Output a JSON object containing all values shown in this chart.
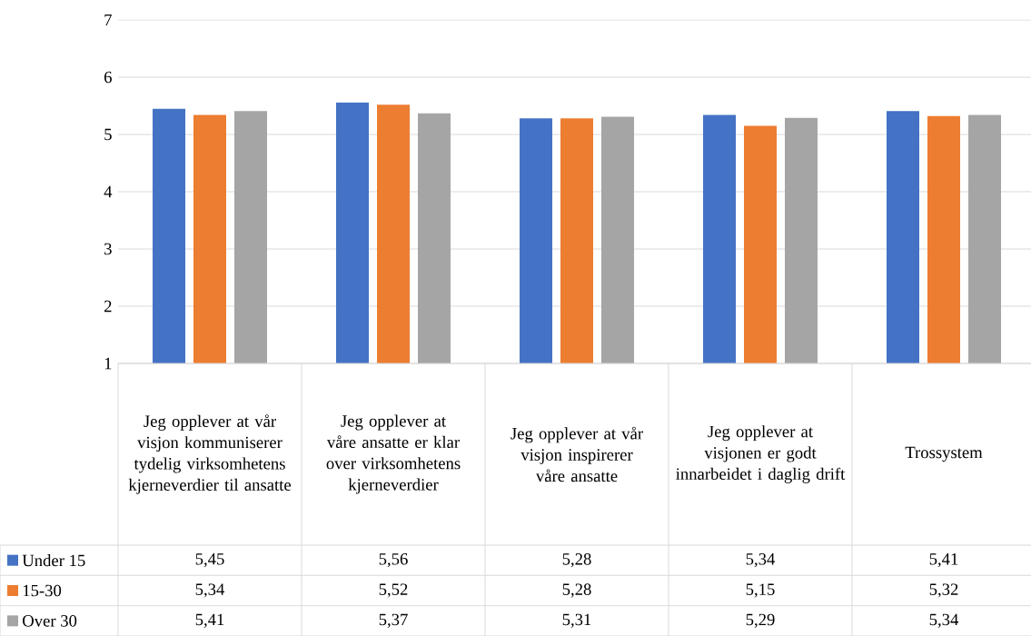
{
  "chart_data": {
    "type": "bar",
    "categories": [
      "Jeg opplever at vår visjon kommuniserer tydelig virksomhetens kjerneverdier til ansatte",
      "Jeg opplever at våre ansatte er klar over virksomhetens kjerneverdier",
      "Jeg opplever at vår visjon inspirerer våre ansatte",
      "Jeg opplever at visjonen er godt innarbeidet i daglig drift",
      "Trossystem"
    ],
    "series": [
      {
        "name": "Under 15",
        "color": "#4472c4",
        "values": [
          5.45,
          5.56,
          5.28,
          5.34,
          5.41
        ],
        "value_labels": [
          "5,45",
          "5,56",
          "5,28",
          "5,34",
          "5,41"
        ]
      },
      {
        "name": "15-30",
        "color": "#ed7d31",
        "values": [
          5.34,
          5.52,
          5.28,
          5.15,
          5.32
        ],
        "value_labels": [
          "5,34",
          "5,52",
          "5,28",
          "5,15",
          "5,32"
        ]
      },
      {
        "name": "Over 30",
        "color": "#a5a5a5",
        "values": [
          5.41,
          5.37,
          5.31,
          5.29,
          5.34
        ],
        "value_labels": [
          "5,41",
          "5,37",
          "5,31",
          "5,29",
          "5,34"
        ]
      }
    ],
    "ylim": [
      1,
      7
    ],
    "yticks": [
      1,
      2,
      3,
      4,
      5,
      6,
      7
    ],
    "grid": "y",
    "legend": "bottom"
  }
}
